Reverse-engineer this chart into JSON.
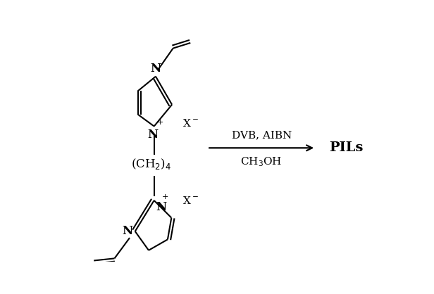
{
  "bg_color": "#ffffff",
  "fig_width": 6.16,
  "fig_height": 4.18,
  "dpi": 100,
  "arrow_label_top": "DVB, AIBN",
  "arrow_label_bottom": "CH$_3$OH",
  "product_label": "PILs",
  "ch2_label": "(CH$_2$)$_4$",
  "xminus_top": "X$^-$",
  "xminus_bot": "X$^-$",
  "font_size_main": 12,
  "font_size_label": 11,
  "font_size_pils": 14
}
